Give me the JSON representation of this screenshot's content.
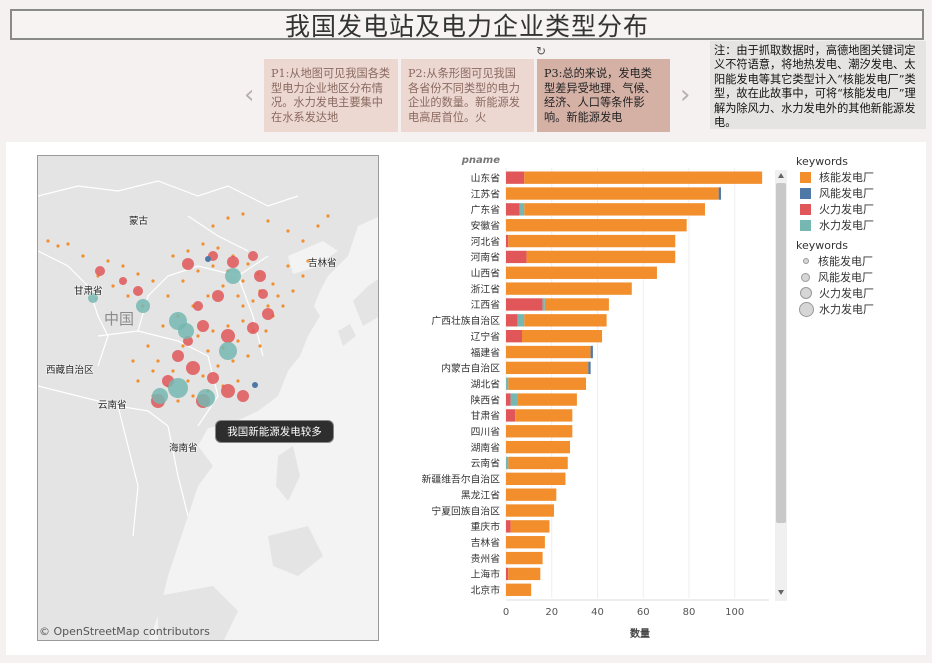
{
  "title": "我国发电站及电力企业类型分布",
  "story": {
    "points": [
      {
        "text": "P1:从地图可见我国各类型电力企业地区分布情况。水力发电主要集中在水系发达地"
      },
      {
        "text": "P2:从条形图可见我国各省份不同类型的电力企业的数量。新能源发电高居首位。火"
      },
      {
        "text": "P3:总的来说，发电类型差异受地理、气候、经济、人口等条件影响。新能源发电"
      }
    ],
    "prev_icon": "chevron-left-icon",
    "next_icon": "chevron-right-icon",
    "reset_icon": "reset-icon",
    "prev_glyph": "‹",
    "next_glyph": "›",
    "reset_glyph": "↻"
  },
  "note": "注：由于抓取数据时，高德地图关键词定义不符语意，将地热发电、潮汐发电、太阳能发电等其它类型计入“核能发电厂”类型，故在此故事中，可将“核能发电厂”理解为除风力、水力发电外的其他新能源发电。",
  "map": {
    "labels": [
      "蒙古",
      "吉林省",
      "甘肃省",
      "中国",
      "西藏自治区",
      "云南省",
      "海南省"
    ],
    "credit": "© OpenStreetMap contributors",
    "tooltip": "我国新能源发电较多"
  },
  "legend": {
    "color_title": "keywords",
    "size_title": "keywords",
    "items": [
      "核能发电厂",
      "风能发电厂",
      "火力发电厂",
      "水力发电厂"
    ],
    "colors": [
      "#f28e2b",
      "#4e79a7",
      "#e15759",
      "#76b7b2"
    ]
  },
  "chart_data": {
    "type": "bar",
    "orientation": "horizontal",
    "stacked": true,
    "row_header": "pname",
    "xlabel": "数量",
    "xlim": [
      0,
      115
    ],
    "xticks": [
      0,
      20,
      40,
      60,
      80,
      100
    ],
    "categories": [
      "山东省",
      "江苏省",
      "广东省",
      "安徽省",
      "河北省",
      "河南省",
      "山西省",
      "浙江省",
      "江西省",
      "广西壮族自治区",
      "辽宁省",
      "福建省",
      "内蒙古自治区",
      "湖北省",
      "陕西省",
      "甘肃省",
      "四川省",
      "湖南省",
      "云南省",
      "新疆维吾尔自治区",
      "黑龙江省",
      "宁夏回族自治区",
      "重庆市",
      "吉林省",
      "贵州省",
      "上海市",
      "北京市"
    ],
    "series": [
      {
        "name": "火力发电厂",
        "color": "#e15759",
        "values": [
          8,
          0,
          6,
          0,
          1,
          9,
          0,
          0,
          16,
          5,
          7,
          0,
          0,
          0,
          2,
          4,
          0,
          0,
          0,
          0,
          0,
          0,
          2,
          0,
          0,
          1,
          0
        ]
      },
      {
        "name": "水力发电厂",
        "color": "#76b7b2",
        "values": [
          0,
          0,
          2,
          0,
          0,
          0,
          0,
          0,
          1,
          3,
          0,
          0,
          0,
          1,
          3,
          0,
          0,
          0,
          1,
          0,
          0,
          0,
          0,
          0,
          0,
          0,
          0
        ]
      },
      {
        "name": "核能发电厂",
        "color": "#f28e2b",
        "values": [
          104,
          93,
          79,
          79,
          73,
          65,
          66,
          55,
          28,
          36,
          35,
          37,
          36,
          34,
          26,
          25,
          29,
          28,
          26,
          26,
          22,
          21,
          17,
          17,
          16,
          14,
          11
        ]
      },
      {
        "name": "风能发电厂",
        "color": "#4e79a7",
        "values": [
          0,
          1,
          0,
          0,
          0,
          0,
          0,
          0,
          0,
          0,
          0,
          1,
          1,
          0,
          0,
          0,
          0,
          0,
          0,
          0,
          0,
          0,
          0,
          0,
          0,
          0,
          0
        ]
      }
    ]
  }
}
